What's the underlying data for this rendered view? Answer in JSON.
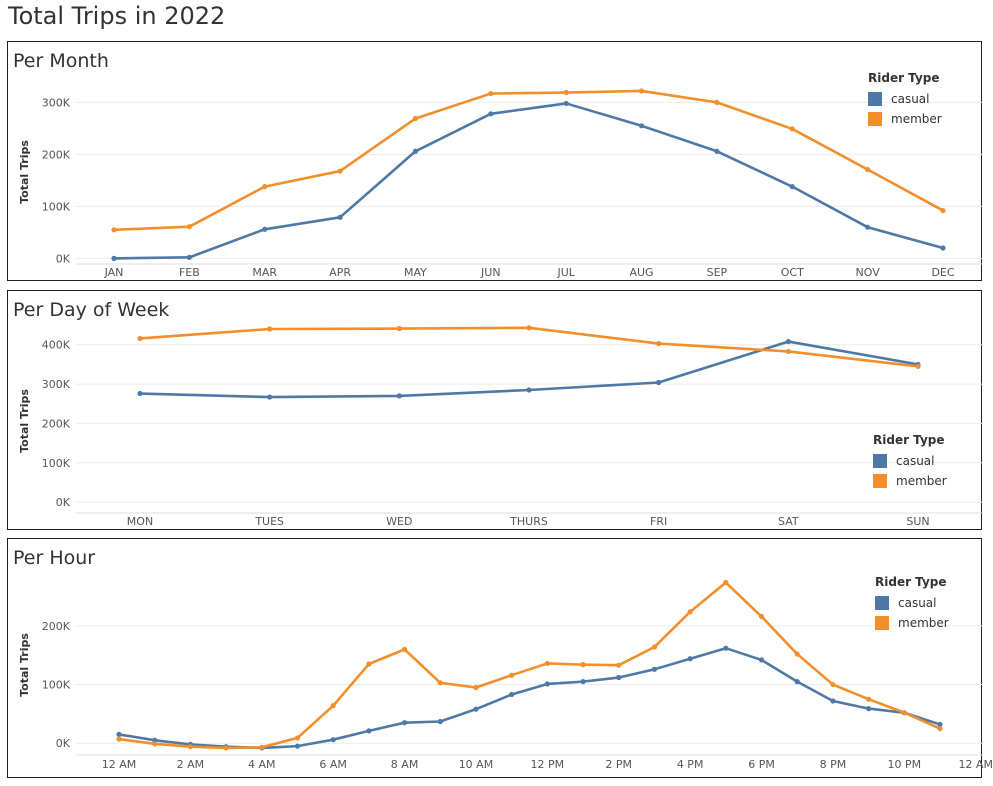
{
  "page": {
    "title": "Total Trips in 2022"
  },
  "colors": {
    "casual": "#4e79a7",
    "member": "#f28e2b",
    "grid": "#ececec",
    "tick": "#555555"
  },
  "legend": {
    "title": "Rider Type",
    "items": [
      "casual",
      "member"
    ]
  },
  "chart_data": [
    {
      "type": "line",
      "title": "Per Month",
      "ylabel": "Total Trips",
      "xlabel": "",
      "ylim": [
        -5000,
        345000
      ],
      "yticks": [
        0,
        100000,
        200000,
        300000
      ],
      "ytick_labels": [
        "0K",
        "100K",
        "200K",
        "300K"
      ],
      "categories": [
        "JAN",
        "FEB",
        "MAR",
        "APR",
        "MAY",
        "JUN",
        "JUL",
        "AUG",
        "SEP",
        "OCT",
        "NOV",
        "DEC"
      ],
      "series": [
        {
          "name": "casual",
          "values": [
            0,
            2000,
            56000,
            79000,
            206000,
            278000,
            298000,
            255000,
            206000,
            138000,
            60000,
            20000
          ]
        },
        {
          "name": "member",
          "values": [
            55000,
            61000,
            138000,
            168000,
            269000,
            317000,
            319000,
            322000,
            300000,
            249000,
            171000,
            92000
          ]
        }
      ]
    },
    {
      "type": "line",
      "title": "Per Day of Week",
      "ylabel": "Total Trips",
      "xlabel": "",
      "ylim": [
        -20000,
        440000
      ],
      "yticks": [
        0,
        100000,
        200000,
        300000,
        400000
      ],
      "ytick_labels": [
        "0K",
        "100K",
        "200K",
        "300K",
        "400K"
      ],
      "categories": [
        "MON",
        "TUES",
        "WED",
        "THURS",
        "FRI",
        "SAT",
        "SUN"
      ],
      "series": [
        {
          "name": "casual",
          "values": [
            276000,
            267000,
            270000,
            285000,
            304000,
            408000,
            350000
          ]
        },
        {
          "name": "member",
          "values": [
            416000,
            440000,
            441000,
            443000,
            403000,
            383000,
            345000
          ]
        }
      ]
    },
    {
      "type": "line",
      "title": "Per Hour",
      "ylabel": "Total Trips",
      "xlabel": "",
      "ylim": [
        -15000,
        280000
      ],
      "yticks": [
        0,
        100000,
        200000
      ],
      "ytick_labels": [
        "0K",
        "100K",
        "200K"
      ],
      "categories": [
        "12 AM",
        "1 AM",
        "2 AM",
        "3 AM",
        "4 AM",
        "5 AM",
        "6 AM",
        "7 AM",
        "8 AM",
        "9 AM",
        "10 AM",
        "11 AM",
        "12 PM",
        "1 PM",
        "2 PM",
        "3 PM",
        "4 PM",
        "5 PM",
        "6 PM",
        "7 PM",
        "8 PM",
        "9 PM",
        "10 PM",
        "11 PM"
      ],
      "xtick_labels": [
        "12 AM",
        "2 AM",
        "4 AM",
        "6 AM",
        "8 AM",
        "10 AM",
        "12 PM",
        "2 PM",
        "4 PM",
        "6 PM",
        "8 PM",
        "10 PM",
        "12 AM"
      ],
      "series": [
        {
          "name": "casual",
          "values": [
            15000,
            5000,
            -2000,
            -6000,
            -8000,
            -5000,
            6000,
            21000,
            35000,
            37000,
            58000,
            83000,
            101000,
            105000,
            112000,
            126000,
            144000,
            162000,
            142000,
            105000,
            72000,
            59000,
            52000,
            32000
          ]
        },
        {
          "name": "member",
          "values": [
            7000,
            -1000,
            -6000,
            -8000,
            -7000,
            9000,
            64000,
            135000,
            160000,
            103000,
            95000,
            116000,
            136000,
            134000,
            133000,
            164000,
            224000,
            274000,
            216000,
            152000,
            100000,
            75000,
            52000,
            25000
          ]
        }
      ]
    }
  ]
}
